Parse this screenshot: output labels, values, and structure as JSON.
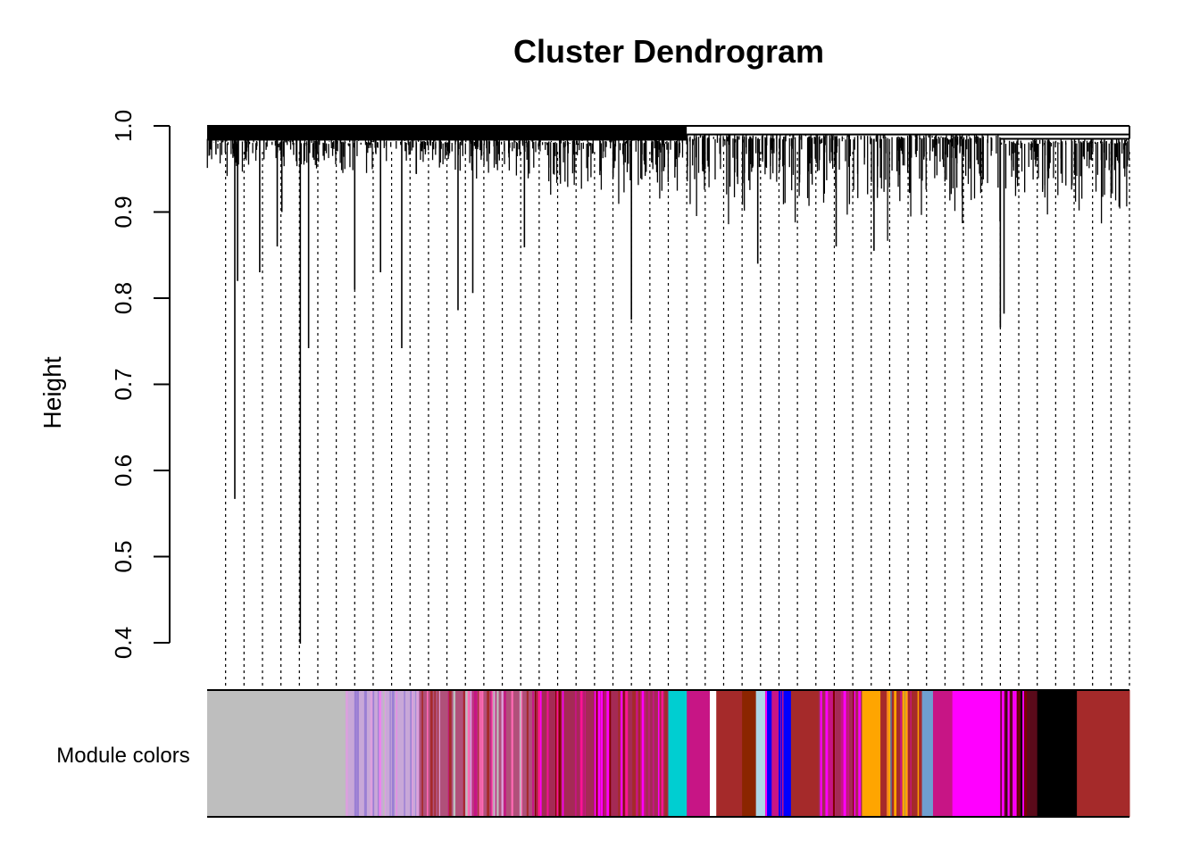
{
  "chart_data": {
    "type": "dendrogram",
    "title": "Cluster Dendrogram",
    "xlabel": "",
    "ylabel": "Height",
    "ylim": [
      0.4,
      1.0
    ],
    "y_ticks": [
      "0.4",
      "0.5",
      "0.6",
      "0.7",
      "0.8",
      "0.9",
      "1.0"
    ],
    "y_tick_values": [
      0.4,
      0.5,
      0.6,
      0.7,
      0.8,
      0.9,
      1.0
    ],
    "top_merge_height": 0.985,
    "deep_leaves": [
      {
        "pos": 0.03,
        "height": 0.567
      },
      {
        "pos": 0.101,
        "height": 0.399
      },
      {
        "pos": 0.11,
        "height": 0.742
      },
      {
        "pos": 0.033,
        "height": 0.82
      },
      {
        "pos": 0.057,
        "height": 0.83
      },
      {
        "pos": 0.076,
        "height": 0.86
      },
      {
        "pos": 0.081,
        "height": 0.9
      },
      {
        "pos": 0.16,
        "height": 0.81
      },
      {
        "pos": 0.188,
        "height": 0.83
      },
      {
        "pos": 0.211,
        "height": 0.742
      },
      {
        "pos": 0.272,
        "height": 0.786
      },
      {
        "pos": 0.288,
        "height": 0.806
      },
      {
        "pos": 0.344,
        "height": 0.859
      },
      {
        "pos": 0.46,
        "height": 0.775
      },
      {
        "pos": 0.597,
        "height": 0.84
      },
      {
        "pos": 0.682,
        "height": 0.86
      },
      {
        "pos": 0.723,
        "height": 0.855
      },
      {
        "pos": 0.86,
        "height": 0.766
      },
      {
        "pos": 0.864,
        "height": 0.782
      }
    ],
    "dense_region": [
      {
        "from": 0.0,
        "to": 0.37,
        "min": 0.93,
        "max": 0.985
      },
      {
        "from": 0.37,
        "to": 0.52,
        "min": 0.9,
        "max": 0.985
      },
      {
        "from": 0.52,
        "to": 0.66,
        "min": 0.87,
        "max": 0.99
      },
      {
        "from": 0.66,
        "to": 0.86,
        "min": 0.86,
        "max": 0.99
      },
      {
        "from": 0.86,
        "to": 1.0,
        "min": 0.87,
        "max": 0.985
      }
    ],
    "dashed_guides": 50,
    "module_label": "Module colors",
    "module_colors": [
      {
        "from": 0.0,
        "to": 0.11,
        "color": "#bebebe"
      },
      {
        "from": 0.11,
        "to": 0.15,
        "color": "#bebebe"
      },
      {
        "from": 0.15,
        "to": 0.23,
        "color": "#c8a8d8",
        "stripes": [
          "#bebebe",
          "#dda0dd",
          "#ee82ee",
          "#add8e6",
          "#9b7fd4"
        ]
      },
      {
        "from": 0.23,
        "to": 0.355,
        "color": "#b0507a",
        "stripes": [
          "#c71585",
          "#dda0dd",
          "#a52a2a",
          "#ff69b4",
          "#bebebe"
        ]
      },
      {
        "from": 0.355,
        "to": 0.5,
        "color": "#a52a55",
        "stripes": [
          "#c71585",
          "#ff00ff",
          "#a52a2a",
          "#800000",
          "#ff1493"
        ]
      },
      {
        "from": 0.5,
        "to": 0.52,
        "color": "#00ced1"
      },
      {
        "from": 0.52,
        "to": 0.545,
        "color": "#c71585"
      },
      {
        "from": 0.545,
        "to": 0.552,
        "color": "#ffffff"
      },
      {
        "from": 0.552,
        "to": 0.58,
        "color": "#a52a2a"
      },
      {
        "from": 0.58,
        "to": 0.595,
        "color": "#8b2500"
      },
      {
        "from": 0.595,
        "to": 0.605,
        "color": "#add8e6"
      },
      {
        "from": 0.605,
        "to": 0.625,
        "color": "#c71585",
        "stripes": [
          "#0000ff",
          "#a52a2a",
          "#ff00ff"
        ]
      },
      {
        "from": 0.625,
        "to": 0.633,
        "color": "#0000ff"
      },
      {
        "from": 0.633,
        "to": 0.663,
        "color": "#a52a2a"
      },
      {
        "from": 0.663,
        "to": 0.71,
        "color": "#a52a55",
        "stripes": [
          "#ff00ff",
          "#800000",
          "#c71585"
        ]
      },
      {
        "from": 0.71,
        "to": 0.73,
        "color": "#ffa500"
      },
      {
        "from": 0.73,
        "to": 0.775,
        "color": "#a52a2a",
        "stripes": [
          "#ffa500",
          "#c71585",
          "#4682b4"
        ]
      },
      {
        "from": 0.775,
        "to": 0.787,
        "color": "#6f9fcf"
      },
      {
        "from": 0.787,
        "to": 0.808,
        "color": "#c71585"
      },
      {
        "from": 0.808,
        "to": 0.86,
        "color": "#ff00ff"
      },
      {
        "from": 0.86,
        "to": 0.9,
        "color": "#5a0a1a",
        "stripes": [
          "#000000",
          "#800000",
          "#ff00ff"
        ]
      },
      {
        "from": 0.9,
        "to": 0.943,
        "color": "#000000"
      },
      {
        "from": 0.943,
        "to": 1.0,
        "color": "#a52a2a"
      }
    ]
  }
}
